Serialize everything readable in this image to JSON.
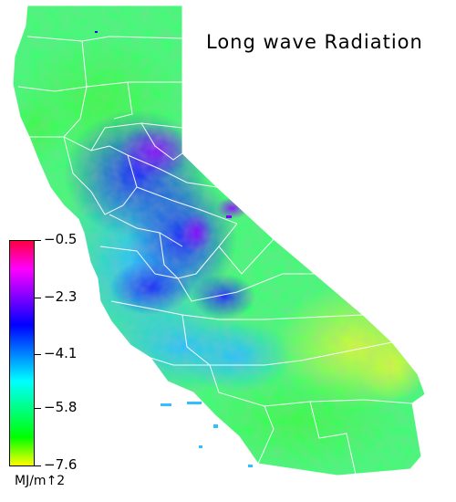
{
  "title": "Long wave Radiation",
  "legend": {
    "units": "MJ/m↑2",
    "ticks": [
      {
        "value": -0.5,
        "label": "−0.5"
      },
      {
        "value": -2.3,
        "label": "−2.3"
      },
      {
        "value": -4.1,
        "label": "−4.1"
      },
      {
        "value": -5.8,
        "label": "−5.8"
      },
      {
        "value": -7.6,
        "label": "−7.6"
      }
    ],
    "range": [
      -7.6,
      -0.5
    ],
    "colors": [
      "#ff0040",
      "#ff00ff",
      "#8000ff",
      "#0000ff",
      "#0080ff",
      "#00ffff",
      "#00ff80",
      "#00ff00",
      "#ffff00"
    ]
  },
  "map": {
    "region": "California",
    "background": "#ffffff",
    "boundary_color": "#ffffff"
  }
}
